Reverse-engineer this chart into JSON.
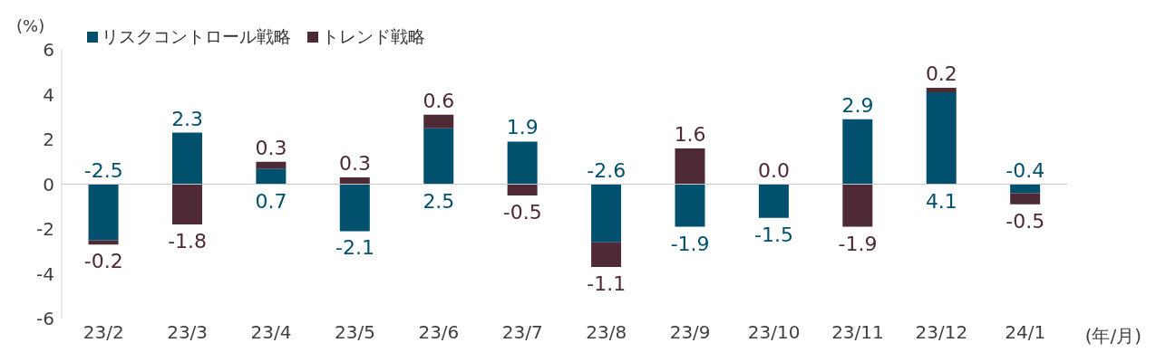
{
  "chart_data": {
    "type": "bar",
    "stacked": true,
    "ylabel": "(%)",
    "xlabel": "(年/月)",
    "categories": [
      "23/2",
      "23/3",
      "23/4",
      "23/5",
      "23/6",
      "23/7",
      "23/8",
      "23/9",
      "23/10",
      "23/11",
      "23/12",
      "24/1"
    ],
    "series": [
      {
        "name": "リスクコントロール戦略",
        "color": "#00506e",
        "values": [
          -2.5,
          2.3,
          0.7,
          -2.1,
          2.5,
          1.9,
          -2.6,
          -1.9,
          -1.5,
          2.9,
          4.1,
          -0.4
        ],
        "value_labels": [
          "-2.5",
          "2.3",
          "0.7",
          "-2.1",
          "2.5",
          "1.9",
          "-2.6",
          "-1.9",
          "-1.5",
          "2.9",
          "4.1",
          "-0.4"
        ]
      },
      {
        "name": "トレンド戦略",
        "color": "#4d2a35",
        "values": [
          -0.2,
          -1.8,
          0.3,
          0.3,
          0.6,
          -0.5,
          -1.1,
          1.6,
          0.0,
          -1.9,
          0.2,
          -0.5
        ],
        "value_labels": [
          "-0.2",
          "-1.8",
          "0.3",
          "0.3",
          "0.6",
          "-0.5",
          "-1.1",
          "1.6",
          "0.0",
          "-1.9",
          "0.2",
          "-0.5"
        ]
      }
    ],
    "ylim": [
      -6,
      6
    ],
    "yticks": [
      -6,
      -4,
      -2,
      0,
      2,
      4,
      6
    ],
    "legend": "top left"
  }
}
